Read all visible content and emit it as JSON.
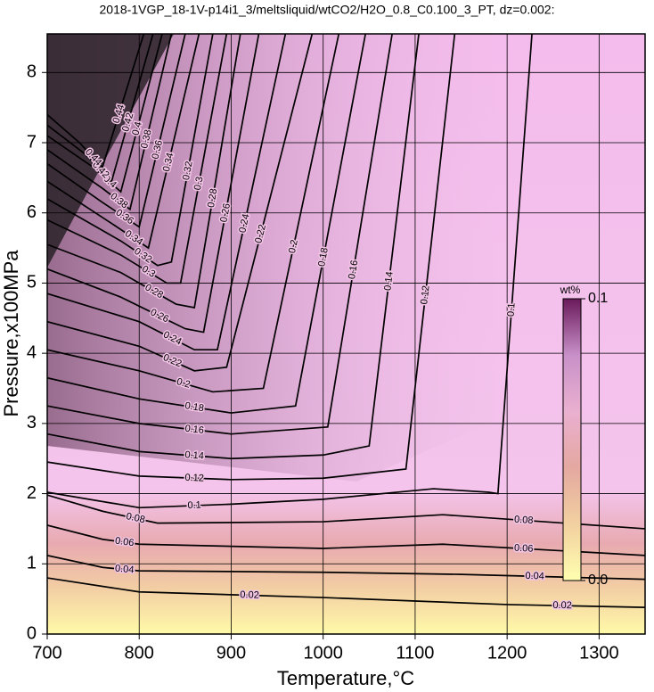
{
  "chart_data": {
    "type": "contour",
    "title": "2018-1VGP_18-1V-p14i1_3/meltsliquid/wtCO2/H2O_0.8_C0.100_3_PT, dz=0.002:",
    "xlabel": "Temperature,°C",
    "ylabel": "Pressure,x100MPa",
    "xlim": [
      700,
      1350
    ],
    "ylim": [
      0,
      8.55
    ],
    "xticks": [
      700,
      800,
      900,
      1000,
      1100,
      1200,
      1300
    ],
    "yticks": [
      0,
      1,
      2,
      3,
      4,
      5,
      6,
      7,
      8
    ],
    "grid": true,
    "line_color": "#000000",
    "colorbar": {
      "label": "wt%",
      "clim": [
        0,
        0.1
      ],
      "ticks": [
        {
          "value": 0,
          "label": "0.0"
        },
        0.1
      ],
      "colors": [
        "#ffffb0",
        "#f2d0a0",
        "#e4a8a0",
        "#eab0d0",
        "#c890c8",
        "#6a1a5a"
      ]
    },
    "contours": [
      {
        "level": 0.02,
        "T": [
          700,
          800,
          1000,
          1200,
          1350
        ],
        "P": [
          0.8,
          0.6,
          0.52,
          0.42,
          0.38
        ]
      },
      {
        "level": 0.04,
        "T": [
          700,
          760,
          800,
          1000,
          1150,
          1350
        ],
        "P": [
          1.12,
          0.95,
          0.9,
          0.88,
          0.85,
          0.78
        ]
      },
      {
        "level": 0.06,
        "T": [
          700,
          760,
          800,
          1000,
          1130,
          1350
        ],
        "P": [
          1.55,
          1.35,
          1.28,
          1.22,
          1.28,
          1.12
        ]
      },
      {
        "level": 0.08,
        "T": [
          700,
          760,
          820,
          1000,
          1130,
          1350
        ],
        "P": [
          1.98,
          1.75,
          1.58,
          1.6,
          1.7,
          1.5
        ]
      },
      {
        "level": 0.1,
        "T": [
          700,
          800,
          900,
          1000,
          1120,
          1180,
          1190,
          1227
        ],
        "P": [
          2.02,
          1.8,
          1.85,
          1.92,
          2.07,
          2.02,
          2.0,
          8.55
        ]
      },
      {
        "level": 0.12,
        "T": [
          700,
          800,
          900,
          1000,
          1090,
          1143
        ],
        "P": [
          2.45,
          2.25,
          2.2,
          2.22,
          2.35,
          8.55
        ]
      },
      {
        "level": 0.14,
        "T": [
          700,
          800,
          900,
          1000,
          1050,
          1104
        ],
        "P": [
          2.85,
          2.6,
          2.5,
          2.55,
          2.68,
          8.55
        ]
      },
      {
        "level": 0.16,
        "T": [
          700,
          800,
          900,
          1005,
          1075
        ],
        "P": [
          3.25,
          3.0,
          2.85,
          2.95,
          8.55
        ]
      },
      {
        "level": 0.18,
        "T": [
          700,
          800,
          900,
          970,
          1046
        ],
        "P": [
          3.65,
          3.35,
          3.15,
          3.25,
          8.55
        ]
      },
      {
        "level": 0.2,
        "T": [
          700,
          800,
          880,
          935,
          1017
        ],
        "P": [
          4.05,
          3.75,
          3.45,
          3.5,
          8.55
        ]
      },
      {
        "level": 0.22,
        "T": [
          700,
          800,
          860,
          895,
          988
        ],
        "P": [
          4.45,
          4.1,
          3.75,
          3.8,
          8.55
        ]
      },
      {
        "level": 0.24,
        "T": [
          700,
          800,
          860,
          885,
          959
        ],
        "P": [
          4.85,
          4.45,
          4.05,
          4.05,
          8.55
        ]
      },
      {
        "level": 0.26,
        "T": [
          700,
          780,
          850,
          870,
          930
        ],
        "P": [
          5.2,
          4.8,
          4.35,
          4.3,
          8.55
        ]
      },
      {
        "level": 0.28,
        "T": [
          700,
          780,
          840,
          860,
          910
        ],
        "P": [
          5.55,
          5.15,
          4.7,
          4.65,
          8.55
        ]
      },
      {
        "level": 0.3,
        "T": [
          700,
          780,
          830,
          845,
          895
        ],
        "P": [
          5.9,
          5.4,
          5.0,
          5.0,
          8.55
        ]
      },
      {
        "level": 0.32,
        "T": [
          700,
          780,
          820,
          835,
          880
        ],
        "P": [
          6.2,
          5.6,
          5.25,
          5.3,
          8.55
        ]
      },
      {
        "level": 0.34,
        "T": [
          700,
          770,
          810,
          865
        ],
        "P": [
          6.45,
          5.85,
          5.5,
          8.55
        ]
      },
      {
        "level": 0.36,
        "T": [
          700,
          760,
          800,
          850
        ],
        "P": [
          6.7,
          6.15,
          5.8,
          8.55
        ]
      },
      {
        "level": 0.38,
        "T": [
          700,
          760,
          790,
          835
        ],
        "P": [
          6.9,
          6.35,
          6.05,
          8.55
        ]
      },
      {
        "level": 0.4,
        "T": [
          700,
          750,
          780,
          825
        ],
        "P": [
          7.1,
          6.65,
          6.3,
          8.55
        ]
      },
      {
        "level": 0.42,
        "T": [
          700,
          740,
          770,
          815
        ],
        "P": [
          7.25,
          6.85,
          6.45,
          8.55
        ]
      },
      {
        "level": 0.44,
        "T": [
          700,
          735,
          760,
          805
        ],
        "P": [
          7.4,
          7.0,
          6.65,
          8.55
        ]
      }
    ]
  }
}
